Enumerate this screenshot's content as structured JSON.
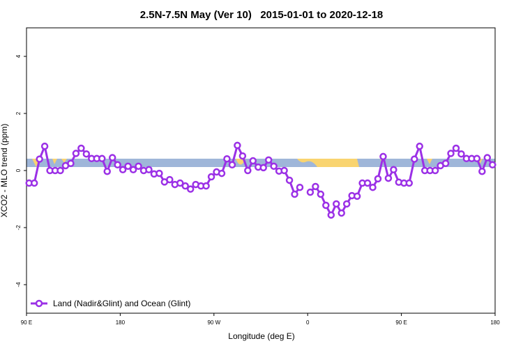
{
  "chart_data": {
    "type": "line",
    "title": "2.5N-7.5N May (Ver 10)   2015-01-01 to 2020-12-18",
    "x_label": "Longitude (deg E)",
    "y_label": "XCO2 - MLO trend (ppm)",
    "xlim": [
      90,
      540
    ],
    "ylim": [
      -5,
      5
    ],
    "xticks": [
      {
        "value": 90,
        "label": "90 E"
      },
      180,
      {
        "value": 270,
        "label": "90 W"
      },
      {
        "value": 360,
        "label": "0"
      },
      {
        "value": 450,
        "label": "90 E"
      },
      {
        "value": 540,
        "label": "180"
      }
    ],
    "yticks": [
      -4,
      -2,
      0,
      2,
      4
    ],
    "legend": "bottom-left",
    "x": [
      92.5,
      97.5,
      102.5,
      107.5,
      112.5,
      117.5,
      122.5,
      127.5,
      132.5,
      137.5,
      142.5,
      147.5,
      152.5,
      157.5,
      162.5,
      167.5,
      172.5,
      177.5,
      182.5,
      187.5,
      192.5,
      197.5,
      202.5,
      207.5,
      212.5,
      217.5,
      222.5,
      227.5,
      232.5,
      237.5,
      242.5,
      247.5,
      252.5,
      257.5,
      262.5,
      267.5,
      272.5,
      277.5,
      282.5,
      287.5,
      292.5,
      297.5,
      302.5,
      307.5,
      312.5,
      317.5,
      322.5,
      327.5,
      332.5,
      337.5,
      342.5,
      347.5,
      352.5,
      357.5,
      362.5,
      367.5,
      372.5,
      377.5,
      382.5,
      387.5,
      392.5,
      397.5,
      402.5,
      407.5,
      412.5,
      417.5,
      422.5,
      427.5,
      432.5,
      437.5,
      442.5,
      447.5,
      452.5,
      457.5,
      462.5,
      467.5,
      472.5,
      477.5,
      482.5,
      487.5,
      492.5,
      497.5,
      502.5,
      507.5,
      512.5,
      517.5,
      522.5,
      527.5,
      532.5,
      537.5
    ],
    "series": [
      {
        "name": "Land (Nadir&Glint) and Ocean (Glint)",
        "color": "#9b30e6",
        "values": [
          -0.44,
          -0.44,
          0.4,
          0.85,
          0,
          0,
          0,
          0.17,
          0.25,
          0.6,
          0.78,
          0.58,
          0.42,
          0.42,
          0.42,
          -0.03,
          0.45,
          0.2,
          0.03,
          0.15,
          0.03,
          0.15,
          0,
          0.03,
          -0.12,
          -0.1,
          -0.4,
          -0.32,
          -0.49,
          -0.44,
          -0.54,
          -0.65,
          -0.49,
          -0.54,
          -0.54,
          -0.22,
          -0.05,
          -0.1,
          0.41,
          0.2,
          0.88,
          0.51,
          0,
          0.34,
          0.12,
          0.1,
          0.37,
          0.15,
          -0.02,
          0,
          -0.34,
          -0.83,
          -0.59,
          null,
          -0.76,
          -0.56,
          -0.83,
          -1.22,
          -1.56,
          -1.17,
          -1.49,
          -1.17,
          -0.88,
          -0.9,
          -0.44,
          -0.44,
          -0.59,
          -0.29,
          0.49,
          -0.27,
          0.03,
          -0.41,
          -0.44,
          -0.44,
          0.4,
          0.85,
          0,
          0,
          0,
          0.17,
          0.25,
          0.6,
          0.78,
          0.58,
          0.42,
          0.42,
          0.42,
          -0.03,
          0.45,
          0.2
        ]
      }
    ]
  }
}
